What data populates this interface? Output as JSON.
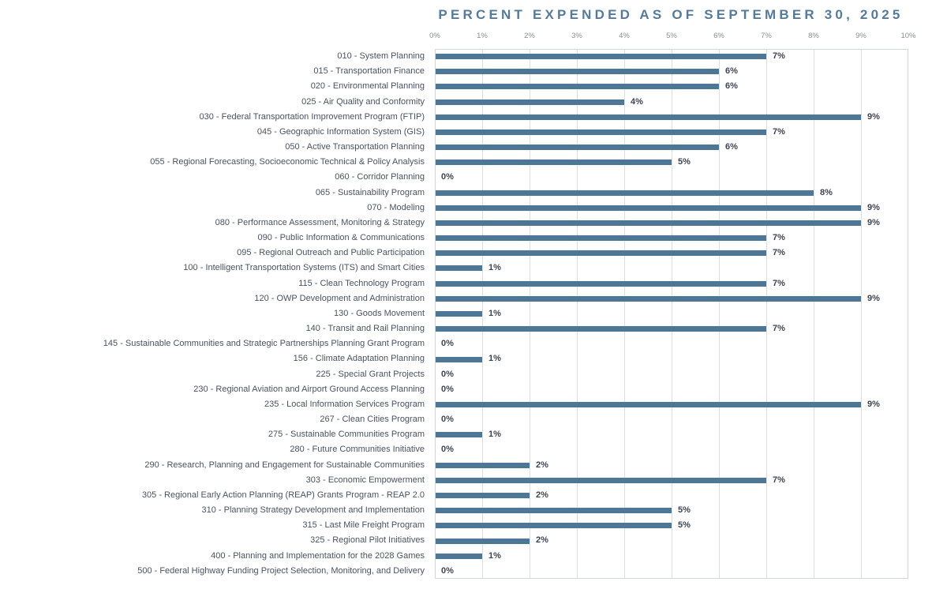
{
  "title": "PERCENT EXPENDED AS OF SEPTEMBER 30, 2025",
  "colors": {
    "bar": "#4d7794",
    "title": "#567a99",
    "tick_labels": "#878e96",
    "category_labels": "#4a5360",
    "value_labels": "#3e4450",
    "gridlines": "#dcdfe1",
    "plot_border": "#d3d6d9",
    "background": "#ffffff"
  },
  "chart_data": {
    "type": "bar",
    "orientation": "horizontal",
    "title": "PERCENT EXPENDED AS OF SEPTEMBER 30, 2025",
    "xlabel": "",
    "ylabel": "",
    "xlim": [
      0,
      10
    ],
    "x_tick_labels": [
      "0%",
      "1%",
      "2%",
      "3%",
      "4%",
      "5%",
      "6%",
      "7%",
      "8%",
      "9%",
      "10%"
    ],
    "grid": true,
    "legend": false,
    "axis_position": "top",
    "categories": [
      "010 - System Planning",
      "015 - Transportation Finance",
      "020 - Environmental Planning",
      "025 - Air Quality and Conformity",
      "030 - Federal Transportation Improvement Program (FTIP)",
      "045 - Geographic Information System (GIS)",
      "050 - Active Transportation Planning",
      "055 - Regional Forecasting, Socioeconomic Technical & Policy Analysis",
      "060 - Corridor Planning",
      "065 - Sustainability Program",
      "070 - Modeling",
      "080 - Performance Assessment, Monitoring & Strategy",
      "090 - Public Information & Communications",
      "095 - Regional Outreach and Public Participation",
      "100 - Intelligent Transportation Systems (ITS) and Smart Cities",
      "115 - Clean Technology Program",
      "120 - OWP Development and Administration",
      "130 - Goods Movement",
      "140 - Transit and Rail Planning",
      "145 - Sustainable Communities and Strategic Partnerships Planning Grant Program",
      "156 - Climate Adaptation Planning",
      "225 - Special Grant Projects",
      "230 - Regional Aviation and Airport Ground Access Planning",
      "235 - Local Information Services Program",
      "267 - Clean Cities Program",
      "275 - Sustainable Communities Program",
      "280 - Future Communities Initiative",
      "290 - Research, Planning and Engagement for Sustainable Communities",
      "303 - Economic Empowerment",
      "305 - Regional Early Action Planning (REAP) Grants Program - REAP 2.0",
      "310 - Planning Strategy Development and Implementation",
      "315 - Last Mile Freight Program",
      "325 - Regional Pilot Initiatives",
      "400 - Planning and Implementation for the 2028 Games",
      "500 - Federal Highway Funding Project Selection, Monitoring, and Delivery"
    ],
    "values": [
      7,
      6,
      6,
      4,
      9,
      7,
      6,
      5,
      0,
      8,
      9,
      9,
      7,
      7,
      1,
      7,
      9,
      1,
      7,
      0,
      1,
      0,
      0,
      9,
      0,
      1,
      0,
      2,
      7,
      2,
      5,
      5,
      2,
      1,
      0
    ],
    "value_labels": [
      "7%",
      "6%",
      "6%",
      "4%",
      "9%",
      "7%",
      "6%",
      "5%",
      "0%",
      "8%",
      "9%",
      "9%",
      "7%",
      "7%",
      "1%",
      "7%",
      "9%",
      "1%",
      "7%",
      "0%",
      "1%",
      "0%",
      "0%",
      "9%",
      "0%",
      "1%",
      "0%",
      "2%",
      "7%",
      "2%",
      "5%",
      "5%",
      "2%",
      "1%",
      "0%"
    ]
  }
}
